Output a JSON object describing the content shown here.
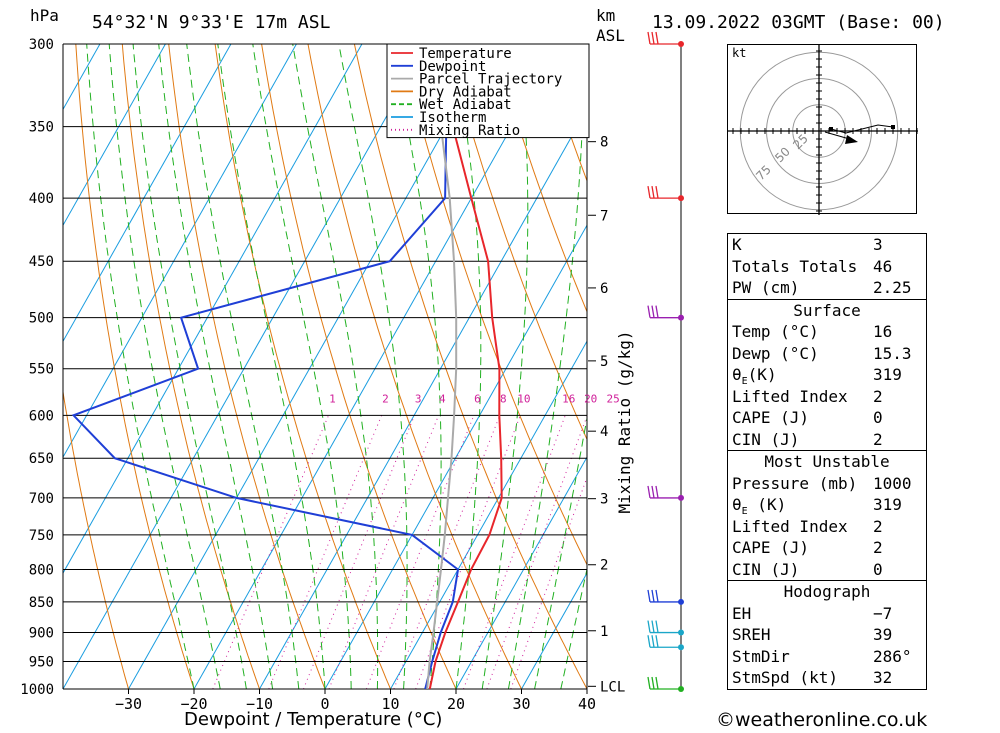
{
  "header": {
    "pressure_unit": "hPa",
    "location": "54°32'N  9°33'E  17m  ASL",
    "height_unit_line1": "km",
    "height_unit_line2": "ASL",
    "datetime": "13.09.2022  03GMT  (Base: 00)"
  },
  "chart_data": {
    "type": "line",
    "subtype": "skew-T log-P sounding",
    "xlabel": "Dewpoint / Temperature (°C)",
    "ylabel": "hPa",
    "right_axis_label": "km ASL",
    "mixing_ratio_axis_label": "Mixing Ratio (g/kg)",
    "xlim": [
      -40,
      40
    ],
    "ylim": [
      1000,
      300
    ],
    "x_ticks": [
      -30,
      -20,
      -10,
      0,
      10,
      20,
      30,
      40
    ],
    "x_tick_labels": [
      "−30",
      "−20",
      "−10",
      "0",
      "10",
      "20",
      "30",
      "40"
    ],
    "pressure_levels": [
      300,
      350,
      400,
      450,
      500,
      550,
      600,
      650,
      700,
      750,
      800,
      850,
      900,
      950,
      1000
    ],
    "height_ticks": [
      {
        "label": "8",
        "p": 360
      },
      {
        "label": "7",
        "p": 413
      },
      {
        "label": "6",
        "p": 473
      },
      {
        "label": "5",
        "p": 542
      },
      {
        "label": "4",
        "p": 618
      },
      {
        "label": "3",
        "p": 701
      },
      {
        "label": "2",
        "p": 793
      },
      {
        "label": "1",
        "p": 897
      },
      {
        "label": "LCL",
        "p": 995
      }
    ],
    "mixing_ratio_labels": [
      "1",
      "2",
      "3",
      "4",
      "6",
      "8",
      "10",
      "16",
      "20",
      "25"
    ],
    "mixing_ratio_label_p": 590,
    "legend": {
      "placement": "top-right",
      "entries": [
        {
          "name": "Temperature",
          "color": "#e8262b",
          "style": "solid"
        },
        {
          "name": "Dewpoint",
          "color": "#1f3fd6",
          "style": "solid"
        },
        {
          "name": "Parcel Trajectory",
          "color": "#aaaaaa",
          "style": "solid"
        },
        {
          "name": "Dry Adiabat",
          "color": "#e07a14",
          "style": "solid"
        },
        {
          "name": "Wet Adiabat",
          "color": "#21b021",
          "style": "dashed"
        },
        {
          "name": "Isotherm",
          "color": "#1a9de0",
          "style": "solid"
        },
        {
          "name": "Mixing Ratio",
          "color": "#d0209a",
          "style": "dotted"
        }
      ]
    },
    "series": [
      {
        "name": "Temperature",
        "color": "#e8262b",
        "points": [
          {
            "p": 1000,
            "t": 16.0
          },
          {
            "p": 950,
            "t": 14.5
          },
          {
            "p": 900,
            "t": 13.5
          },
          {
            "p": 850,
            "t": 12.8
          },
          {
            "p": 800,
            "t": 12.0
          },
          {
            "p": 750,
            "t": 11.8
          },
          {
            "p": 700,
            "t": 10.5
          },
          {
            "p": 650,
            "t": 7.0
          },
          {
            "p": 600,
            "t": 3.0
          },
          {
            "p": 550,
            "t": -1.0
          },
          {
            "p": 500,
            "t": -6.5
          },
          {
            "p": 450,
            "t": -12.0
          },
          {
            "p": 400,
            "t": -20.0
          },
          {
            "p": 350,
            "t": -29.0
          },
          {
            "p": 300,
            "t": -38.5
          }
        ]
      },
      {
        "name": "Dewpoint",
        "color": "#1f3fd6",
        "points": [
          {
            "p": 1000,
            "t": 15.3
          },
          {
            "p": 950,
            "t": 14.0
          },
          {
            "p": 900,
            "t": 12.8
          },
          {
            "p": 850,
            "t": 12.0
          },
          {
            "p": 800,
            "t": 10.0
          },
          {
            "p": 750,
            "t": 0.0
          },
          {
            "p": 700,
            "t": -30.0
          },
          {
            "p": 650,
            "t": -52.0
          },
          {
            "p": 600,
            "t": -62.0
          },
          {
            "p": 550,
            "t": -47.0
          },
          {
            "p": 500,
            "t": -54.0
          },
          {
            "p": 450,
            "t": -27.0
          },
          {
            "p": 400,
            "t": -24.0
          },
          {
            "p": 350,
            "t": -30.0
          },
          {
            "p": 300,
            "t": -41.0
          }
        ]
      },
      {
        "name": "Parcel Trajectory",
        "color": "#aaaaaa",
        "points": [
          {
            "p": 1000,
            "t": 15.6
          },
          {
            "p": 950,
            "t": 13.6
          },
          {
            "p": 900,
            "t": 11.7
          },
          {
            "p": 850,
            "t": 9.6
          },
          {
            "p": 800,
            "t": 7.4
          },
          {
            "p": 750,
            "t": 5.0
          },
          {
            "p": 700,
            "t": 2.3
          },
          {
            "p": 650,
            "t": -0.6
          },
          {
            "p": 600,
            "t": -3.9
          },
          {
            "p": 550,
            "t": -7.6
          },
          {
            "p": 500,
            "t": -12.0
          },
          {
            "p": 450,
            "t": -17.2
          },
          {
            "p": 400,
            "t": -23.3
          },
          {
            "p": 350,
            "t": -30.8
          },
          {
            "p": 300,
            "t": -40.0
          }
        ]
      }
    ],
    "wind_barbs": [
      {
        "p": 300,
        "color": "#e8262b"
      },
      {
        "p": 400,
        "color": "#e8262b"
      },
      {
        "p": 500,
        "color": "#9a1fb0"
      },
      {
        "p": 700,
        "color": "#9a1fb0"
      },
      {
        "p": 850,
        "color": "#1f3fd6"
      },
      {
        "p": 900,
        "color": "#1aa6c8"
      },
      {
        "p": 925,
        "color": "#1aa6c8"
      },
      {
        "p": 1000,
        "color": "#21b021"
      }
    ]
  },
  "hodograph": {
    "unit_label": "kt",
    "ring_labels": [
      "25",
      "50",
      "75"
    ]
  },
  "indices": {
    "general": [
      {
        "label": "K",
        "value": "3"
      },
      {
        "label": "Totals Totals",
        "value": "46"
      },
      {
        "label": "PW (cm)",
        "value": "2.25"
      }
    ],
    "surface": {
      "title": "Surface",
      "rows": [
        {
          "label": "Temp (°C)",
          "value": "16"
        },
        {
          "label": "Dewp (°C)",
          "value": "15.3"
        },
        {
          "label": "θE(K)",
          "value": "319"
        },
        {
          "label": "Lifted Index",
          "value": "2"
        },
        {
          "label": "CAPE (J)",
          "value": "0"
        },
        {
          "label": "CIN (J)",
          "value": "2"
        }
      ]
    },
    "most_unstable": {
      "title": "Most Unstable",
      "rows": [
        {
          "label": "Pressure (mb)",
          "value": "1000"
        },
        {
          "label": "θE (K)",
          "value": "319"
        },
        {
          "label": "Lifted Index",
          "value": "2"
        },
        {
          "label": "CAPE (J)",
          "value": "2"
        },
        {
          "label": "CIN (J)",
          "value": "0"
        }
      ]
    },
    "hodograph": {
      "title": "Hodograph",
      "rows": [
        {
          "label": "EH",
          "value": "−7"
        },
        {
          "label": "SREH",
          "value": "39"
        },
        {
          "label": "StmDir",
          "value": "286°"
        },
        {
          "label": "StmSpd (kt)",
          "value": "32"
        }
      ]
    }
  },
  "footer": {
    "credit": "©weatheronline.co.uk"
  }
}
